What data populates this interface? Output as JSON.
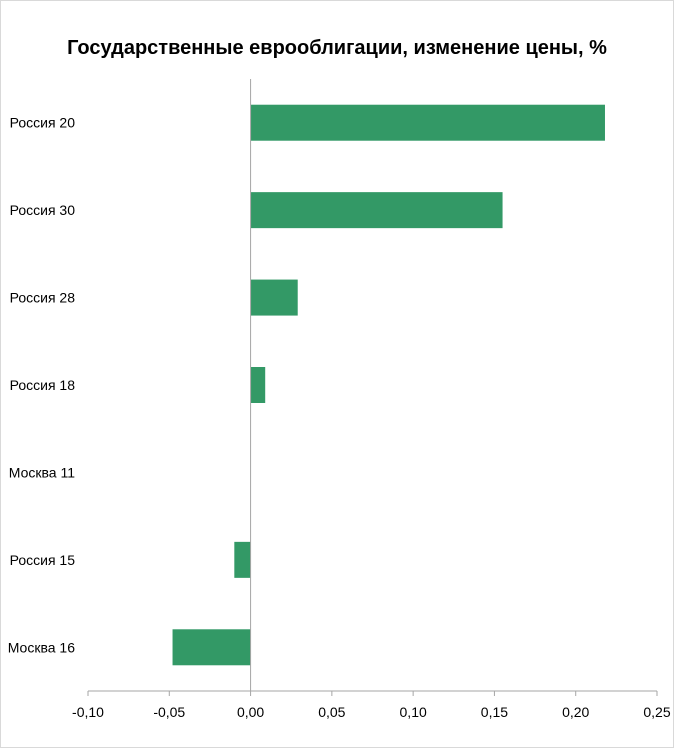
{
  "chart_data": {
    "type": "bar",
    "orientation": "horizontal",
    "title": "Государственные еврооблигации, изменение цены, %",
    "xlabel": "",
    "ylabel": "",
    "categories": [
      "Россия 20",
      "Россия 30",
      "Россия 28",
      "Россия 18",
      "Москва 11",
      "Россия 15",
      "Москва 16"
    ],
    "values": [
      0.218,
      0.155,
      0.029,
      0.009,
      0.0,
      -0.01,
      -0.048
    ],
    "xlim": [
      -0.1,
      0.25
    ],
    "xticks": [
      -0.1,
      -0.05,
      0.0,
      0.05,
      0.1,
      0.15,
      0.2,
      0.25
    ],
    "xtick_labels": [
      "-0,10",
      "-0,05",
      "0,00",
      "0,05",
      "0,10",
      "0,15",
      "0,20",
      "0,25"
    ],
    "grid": false,
    "legend": "none",
    "bar_color": "#339966"
  }
}
